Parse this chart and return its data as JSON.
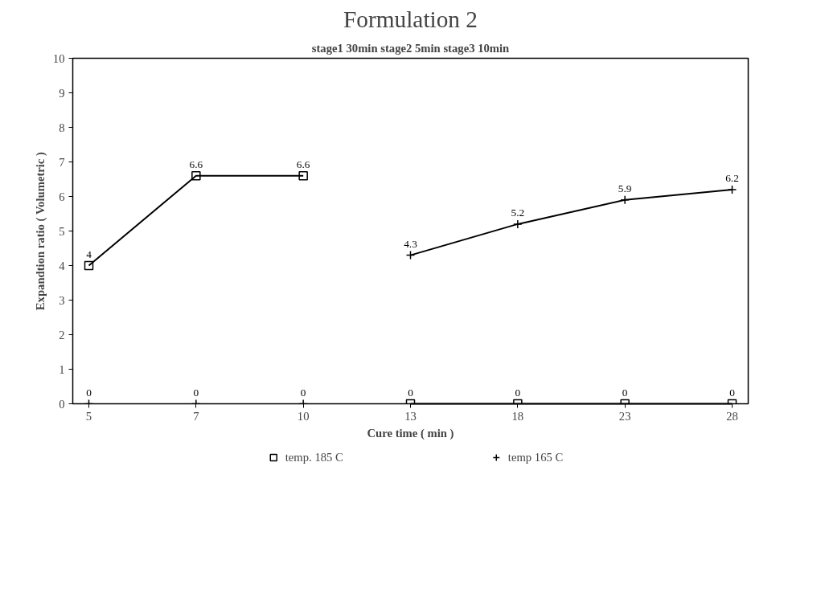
{
  "chart_data": {
    "type": "line",
    "title": "Formulation 2",
    "subtitle": "stage1 30min stage2 5min stage3 10min",
    "xlabel": "Cure time ( min )",
    "ylabel": "Expandtion ratio ( Volumetric )",
    "categories": [
      "5",
      "7",
      "10",
      "13",
      "18",
      "23",
      "28"
    ],
    "ylim": [
      0,
      10
    ],
    "yticks": [
      0,
      1,
      2,
      3,
      4,
      5,
      6,
      7,
      8,
      9,
      10
    ],
    "grid": false,
    "legend": "bottom",
    "series": [
      {
        "name": "temp. 185 C",
        "color": "#000000",
        "marker": "square",
        "values": [
          4,
          6.6,
          6.6,
          null,
          null,
          null,
          null
        ],
        "value_labels": [
          "4",
          "6.6",
          "6.6",
          null,
          null,
          null,
          null
        ]
      },
      {
        "color": "#000000",
        "marker": "square",
        "values": [
          null,
          null,
          null,
          0,
          0,
          0,
          0
        ],
        "value_labels": [
          null,
          null,
          null,
          "0",
          "0",
          "0",
          "0"
        ]
      },
      {
        "name": "temp 165 C",
        "color": "#000000",
        "marker": "cross",
        "values": [
          null,
          null,
          null,
          4.3,
          5.2,
          5.9,
          6.2
        ],
        "value_labels": [
          null,
          null,
          null,
          "4.3",
          "5.2",
          "5.9",
          "6.2"
        ]
      },
      {
        "type": "scatter",
        "color": "#000000",
        "marker": "cross",
        "values": [
          0,
          0,
          0,
          null,
          null,
          null,
          null
        ],
        "value_labels": [
          "0",
          "0",
          "0",
          null,
          null,
          null,
          null
        ]
      }
    ]
  }
}
